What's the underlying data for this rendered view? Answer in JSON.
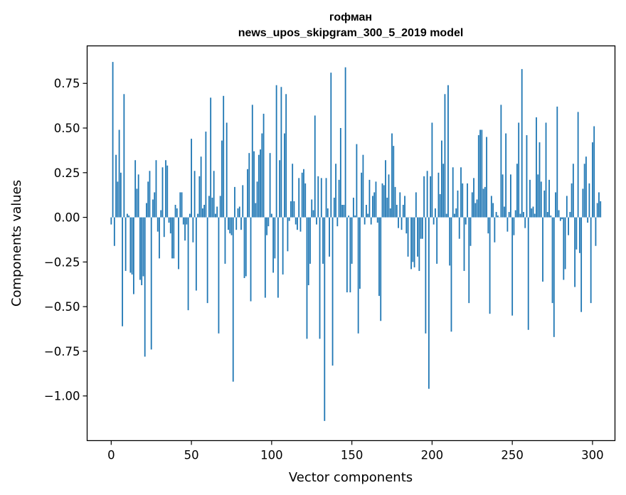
{
  "chart_data": {
    "type": "bar",
    "title_line1": "гофман",
    "title_line2": "news_upos_skipgram_300_5_2019 model",
    "xlabel": "Vector components",
    "ylabel": "Components values",
    "xlim": [
      -15,
      314
    ],
    "ylim": [
      -1.25,
      0.96
    ],
    "xticks": [
      0,
      50,
      100,
      150,
      200,
      250,
      300
    ],
    "yticks": [
      0.75,
      0.5,
      0.25,
      0.0,
      -0.25,
      -0.5,
      -0.75,
      -1.0
    ],
    "ytick_labels": [
      "0.75",
      "0.50",
      "0.25",
      "0.00",
      "−0.25",
      "−0.50",
      "−0.75",
      "−1.00"
    ],
    "bar_color": "#1f77b4",
    "values": [
      -0.04,
      0.87,
      -0.16,
      0.35,
      0.2,
      0.49,
      0.25,
      -0.61,
      0.69,
      -0.3,
      0.02,
      0.01,
      -0.31,
      -0.32,
      -0.43,
      0.32,
      0.16,
      0.24,
      -0.35,
      -0.38,
      -0.33,
      -0.78,
      0.08,
      0.2,
      0.26,
      -0.74,
      0.1,
      0.14,
      0.32,
      -0.08,
      -0.23,
      0.04,
      0.28,
      -0.11,
      0.32,
      0.29,
      -0.03,
      -0.09,
      -0.23,
      -0.23,
      0.07,
      0.05,
      -0.29,
      0.14,
      0.14,
      -0.04,
      -0.13,
      -0.04,
      -0.52,
      0.02,
      0.44,
      -0.14,
      0.26,
      -0.41,
      0.02,
      0.23,
      0.34,
      0.05,
      0.07,
      0.48,
      -0.48,
      0.12,
      0.67,
      0.11,
      0.26,
      0.02,
      0.06,
      -0.65,
      0.12,
      0.43,
      0.68,
      -0.26,
      0.53,
      -0.07,
      -0.09,
      -0.1,
      -0.92,
      0.17,
      -0.07,
      0.05,
      0.06,
      -0.07,
      0.18,
      -0.34,
      -0.33,
      0.27,
      0.36,
      -0.47,
      0.63,
      0.37,
      0.08,
      0.2,
      0.35,
      0.38,
      0.47,
      0.58,
      -0.45,
      -0.1,
      -0.05,
      0.36,
      0.02,
      -0.31,
      -0.23,
      0.74,
      -0.45,
      0.32,
      0.73,
      -0.32,
      0.47,
      0.69,
      -0.19,
      -0.02,
      0.09,
      0.3,
      0.09,
      -0.04,
      -0.07,
      0.22,
      -0.08,
      0.25,
      0.27,
      0.19,
      -0.68,
      -0.38,
      -0.26,
      0.1,
      0.04,
      0.57,
      -0.04,
      0.23,
      -0.68,
      0.22,
      -0.26,
      -1.14,
      0.22,
      0.05,
      -0.22,
      0.81,
      -0.83,
      0.11,
      0.3,
      -0.05,
      0.21,
      0.5,
      0.07,
      0.07,
      0.84,
      -0.42,
      0.01,
      -0.42,
      -0.26,
      0.11,
      0.01,
      0.41,
      -0.65,
      -0.4,
      0.25,
      0.35,
      -0.04,
      0.07,
      0.02,
      0.21,
      -0.04,
      0.12,
      0.14,
      0.2,
      -0.03,
      -0.44,
      -0.58,
      0.19,
      0.18,
      0.32,
      0.11,
      0.24,
      0.05,
      0.47,
      0.4,
      0.17,
      0.07,
      -0.06,
      0.14,
      -0.07,
      0.07,
      0.12,
      -0.09,
      -0.22,
      0.0,
      -0.29,
      -0.25,
      -0.28,
      0.14,
      -0.22,
      -0.3,
      -0.12,
      -0.12,
      0.23,
      -0.65,
      0.26,
      -0.96,
      0.23,
      0.53,
      -0.04,
      0.05,
      -0.26,
      0.25,
      0.13,
      0.43,
      0.3,
      0.69,
      0.02,
      0.74,
      -0.27,
      -0.64,
      0.28,
      0.02,
      0.05,
      0.15,
      -0.12,
      0.28,
      0.19,
      -0.3,
      -0.04,
      0.19,
      -0.48,
      -0.16,
      0.14,
      0.22,
      0.08,
      0.1,
      0.46,
      0.49,
      0.49,
      0.16,
      0.17,
      0.45,
      -0.09,
      -0.54,
      0.12,
      0.08,
      -0.14,
      0.03,
      0.01,
      0.0,
      0.63,
      0.24,
      0.06,
      0.47,
      -0.08,
      0.03,
      0.24,
      -0.55,
      -0.1,
      0.04,
      0.3,
      0.53,
      0.02,
      0.83,
      0.03,
      -0.06,
      0.46,
      -0.63,
      0.21,
      0.05,
      0.06,
      0.02,
      0.56,
      0.24,
      0.42,
      0.2,
      -0.36,
      0.15,
      0.53,
      0.03,
      0.21,
      0.01,
      -0.48,
      -0.67,
      0.14,
      0.62,
      0.04,
      -0.02,
      -0.01,
      -0.35,
      -0.29,
      0.12,
      -0.1,
      0.03,
      0.19,
      0.3,
      -0.39,
      -0.18,
      0.59,
      -0.2,
      -0.53,
      0.16,
      0.3,
      0.34,
      -0.03,
      0.19,
      -0.48,
      0.42,
      0.51,
      -0.16,
      0.08,
      0.14,
      0.09
    ]
  }
}
